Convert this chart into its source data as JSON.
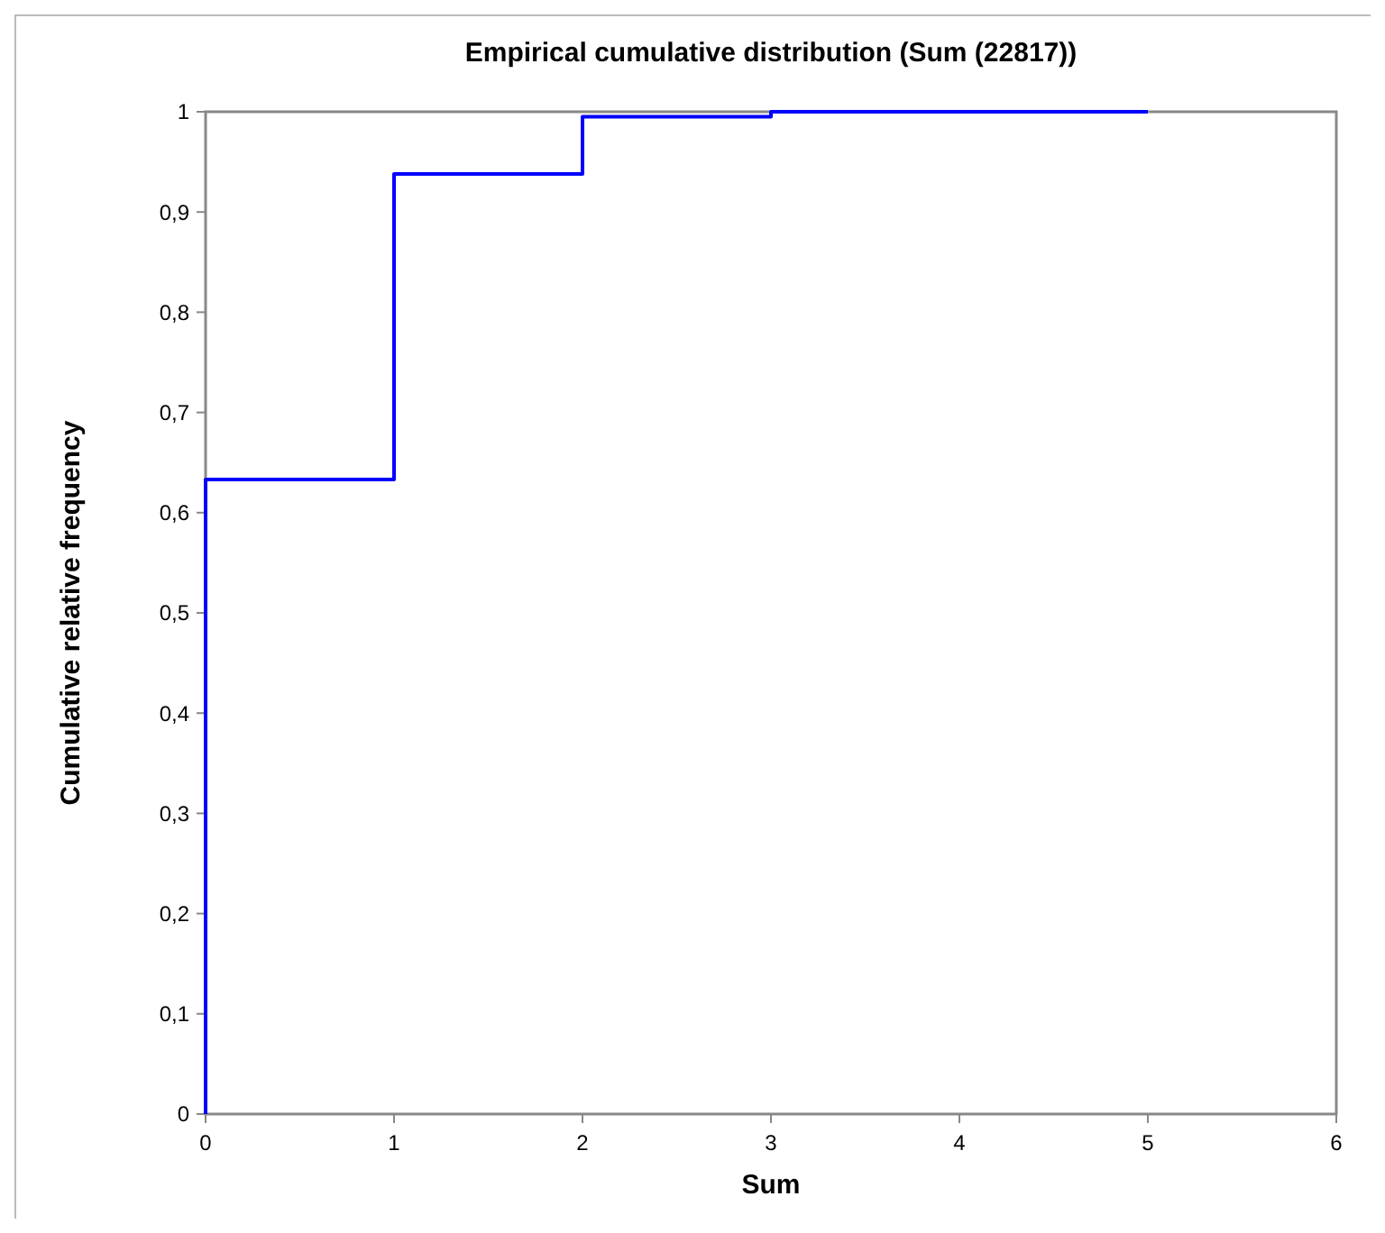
{
  "chart_data": {
    "type": "step",
    "title": "Empirical cumulative distribution (Sum (22817))",
    "xlabel": "Sum",
    "ylabel": "Cumulative relative frequency",
    "x": [
      0,
      0,
      1,
      2,
      3,
      5
    ],
    "series": [
      {
        "color": "#0000ff",
        "values": [
          0,
          0.633,
          0.938,
          0.995,
          1,
          1
        ]
      }
    ],
    "xlim": [
      0,
      6
    ],
    "xticks": [
      0,
      1,
      2,
      3,
      4,
      5,
      6
    ],
    "ylim": [
      0,
      1
    ],
    "yticks": [
      0,
      {
        "value": 0.1,
        "label": "0,1"
      },
      {
        "value": 0.2,
        "label": "0,2"
      },
      {
        "value": 0.3,
        "label": "0,3"
      },
      {
        "value": 0.4,
        "label": "0,4"
      },
      {
        "value": 0.5,
        "label": "0,5"
      },
      {
        "value": 0.6,
        "label": "0,6"
      },
      {
        "value": 0.7,
        "label": "0,7"
      },
      {
        "value": 0.8,
        "label": "0,8"
      },
      {
        "value": 0.9,
        "label": "0,9"
      },
      1
    ],
    "grid": false
  }
}
